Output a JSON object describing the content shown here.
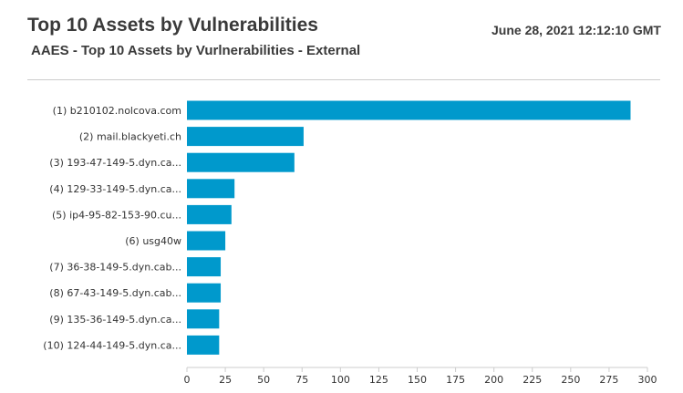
{
  "report": {
    "title": "Top 10 Assets by Vulnerabilities",
    "subtitle": "AAES - Top 10 Assets by Vurlnerabilities - External",
    "timestamp": "June 28, 2021 12:12:10 GMT"
  },
  "colors": {
    "bar": "#0099cc",
    "axis": "#cccccc",
    "text": "#333333"
  },
  "chart_data": {
    "type": "bar",
    "orientation": "horizontal",
    "categories": [
      "(1)  b210102.nolcova.com",
      "(2)  mail.blackyeti.ch",
      "(3)  193-47-149-5.dyn.ca...",
      "(4)  129-33-149-5.dyn.ca...",
      "(5)  ip4-95-82-153-90.cu...",
      "(6)  usg40w",
      "(7)  36-38-149-5.dyn.cab...",
      "(8)  67-43-149-5.dyn.cab...",
      "(9)  135-36-149-5.dyn.ca...",
      "(10)  124-44-149-5.dyn.ca..."
    ],
    "values": [
      289,
      76,
      70,
      31,
      29,
      25,
      22,
      22,
      21,
      21
    ],
    "xticks": [
      "0",
      "25",
      "50",
      "75",
      "100",
      "125",
      "150",
      "175",
      "200",
      "225",
      "250",
      "275",
      "300"
    ],
    "xlim": [
      0,
      300
    ],
    "grid": false,
    "legend": "none"
  }
}
